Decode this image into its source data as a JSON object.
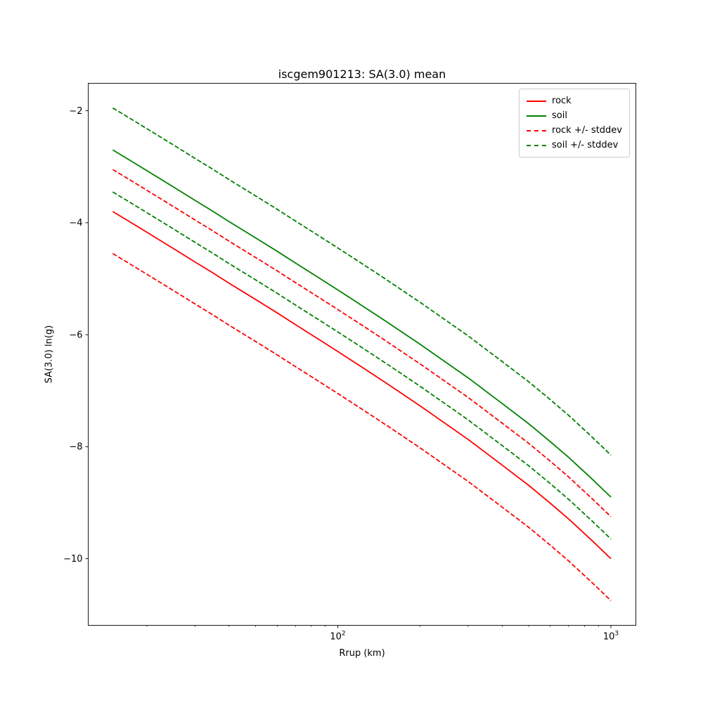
{
  "chart_data": {
    "type": "line",
    "title": "iscgem901213: SA(3.0) mean",
    "xlabel": "Rrup (km)",
    "ylabel": "SA(3.0) ln(g)",
    "x_scale": "log",
    "y_scale": "linear",
    "xlim": [
      12.2,
      1234
    ],
    "ylim": [
      -11.19,
      -1.51
    ],
    "x_major_ticks": [
      {
        "value": 100,
        "base": "10",
        "exponent": "2"
      },
      {
        "value": 1000,
        "base": "10",
        "exponent": "3"
      }
    ],
    "x_minor_ticks": [
      20,
      30,
      40,
      50,
      60,
      70,
      80,
      90,
      200,
      300,
      400,
      500,
      600,
      700,
      800,
      900
    ],
    "y_ticks": [
      -2,
      -4,
      -6,
      -8,
      -10
    ],
    "x": [
      15,
      17,
      20,
      25,
      30,
      35,
      40,
      50,
      60,
      70,
      85,
      100,
      120,
      150,
      200,
      250,
      300,
      400,
      500,
      600,
      700,
      850,
      1000
    ],
    "series": [
      {
        "name": "rock",
        "color": "#ff0000",
        "style": "solid",
        "values": [
          -3.8,
          -3.96,
          -4.17,
          -4.46,
          -4.7,
          -4.9,
          -5.08,
          -5.37,
          -5.61,
          -5.82,
          -6.08,
          -6.3,
          -6.55,
          -6.86,
          -7.27,
          -7.6,
          -7.87,
          -8.33,
          -8.69,
          -9.01,
          -9.29,
          -9.67,
          -10.0
        ]
      },
      {
        "name": "soil",
        "color": "#008000",
        "style": "solid",
        "values": [
          -2.7,
          -2.86,
          -3.07,
          -3.36,
          -3.6,
          -3.8,
          -3.98,
          -4.27,
          -4.51,
          -4.72,
          -4.98,
          -5.2,
          -5.45,
          -5.76,
          -6.17,
          -6.5,
          -6.77,
          -7.23,
          -7.59,
          -7.91,
          -8.19,
          -8.57,
          -8.9
        ]
      },
      {
        "name": "rock +/- stddev",
        "color": "#ff0000",
        "style": "dashed",
        "values_upper": [
          -3.05,
          -3.21,
          -3.42,
          -3.71,
          -3.95,
          -4.15,
          -4.33,
          -4.62,
          -4.86,
          -5.07,
          -5.33,
          -5.55,
          -5.8,
          -6.11,
          -6.52,
          -6.85,
          -7.12,
          -7.58,
          -7.94,
          -8.26,
          -8.54,
          -8.92,
          -9.25
        ],
        "values_lower": [
          -4.55,
          -4.71,
          -4.92,
          -5.21,
          -5.45,
          -5.65,
          -5.83,
          -6.12,
          -6.36,
          -6.57,
          -6.83,
          -7.05,
          -7.3,
          -7.61,
          -8.02,
          -8.35,
          -8.62,
          -9.08,
          -9.44,
          -9.76,
          -10.04,
          -10.42,
          -10.75
        ]
      },
      {
        "name": "soil +/- stddev",
        "color": "#008000",
        "style": "dashed",
        "values_upper": [
          -1.95,
          -2.11,
          -2.32,
          -2.61,
          -2.85,
          -3.05,
          -3.23,
          -3.52,
          -3.76,
          -3.97,
          -4.23,
          -4.45,
          -4.7,
          -5.01,
          -5.42,
          -5.75,
          -6.02,
          -6.48,
          -6.84,
          -7.16,
          -7.44,
          -7.82,
          -8.15
        ],
        "values_lower": [
          -3.45,
          -3.61,
          -3.82,
          -4.11,
          -4.35,
          -4.55,
          -4.73,
          -5.02,
          -5.26,
          -5.47,
          -5.73,
          -5.95,
          -6.2,
          -6.51,
          -6.92,
          -7.25,
          -7.52,
          -7.98,
          -8.34,
          -8.66,
          -8.94,
          -9.32,
          -9.65
        ]
      }
    ],
    "legend": {
      "position": "upper right",
      "entries": [
        "rock",
        "soil",
        "rock +/- stddev",
        "soil +/- stddev"
      ]
    }
  }
}
